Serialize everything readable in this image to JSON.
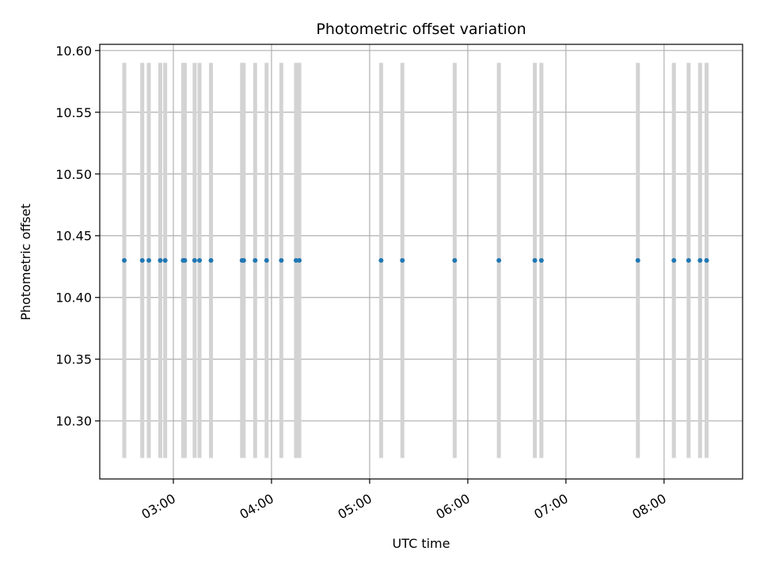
{
  "chart_data": {
    "type": "scatter",
    "title": "Photometric offset variation",
    "xlabel": "UTC time",
    "ylabel": "Photometric offset",
    "xlim": [
      "02:15",
      "08:48"
    ],
    "ylim": [
      10.253,
      10.605
    ],
    "yticks": [
      "10.30",
      "10.35",
      "10.40",
      "10.45",
      "10.50",
      "10.55",
      "10.60"
    ],
    "xticks": [
      "03:00",
      "04:00",
      "05:00",
      "06:00",
      "07:00",
      "08:00"
    ],
    "grid": true,
    "series": [
      {
        "x": [
          "02:30",
          "02:41",
          "02:45",
          "02:52",
          "02:55",
          "03:06",
          "03:07",
          "03:13",
          "03:16",
          "03:23",
          "03:42",
          "03:43",
          "03:50",
          "03:57",
          "04:06",
          "04:15",
          "04:17",
          "05:07",
          "05:20",
          "05:52",
          "06:19",
          "06:41",
          "06:45",
          "07:44",
          "08:06",
          "08:15",
          "08:22",
          "08:26"
        ],
        "y": [
          10.43,
          10.43,
          10.43,
          10.43,
          10.43,
          10.43,
          10.43,
          10.43,
          10.43,
          10.43,
          10.43,
          10.43,
          10.43,
          10.43,
          10.43,
          10.43,
          10.43,
          10.43,
          10.43,
          10.43,
          10.43,
          10.43,
          10.43,
          10.43,
          10.43,
          10.43,
          10.43,
          10.43
        ],
        "yerr": 0.16,
        "color": "#1f77b4",
        "errcolor": "#d3d3d3"
      }
    ]
  }
}
